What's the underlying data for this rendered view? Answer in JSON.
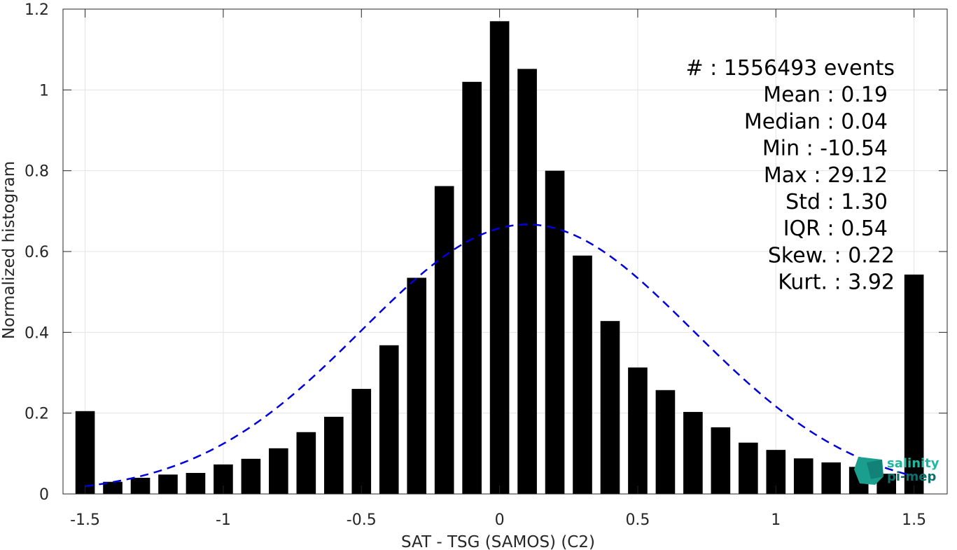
{
  "chart_data": {
    "type": "bar",
    "xlabel": "SAT - TSG (SAMOS) (C2)",
    "ylabel": "Normalized histogram",
    "xlim": [
      -1.58,
      1.62
    ],
    "ylim": [
      0,
      1.2
    ],
    "xticks": [
      -1.5,
      -1,
      -0.5,
      0,
      0.5,
      1,
      1.5
    ],
    "xtick_labels": [
      "-1.5",
      "-1",
      "-0.5",
      "0",
      "0.5",
      "1",
      "1.5"
    ],
    "yticks": [
      0,
      0.2,
      0.4,
      0.6,
      0.8,
      1,
      1.2
    ],
    "ytick_labels": [
      "0",
      "0.2",
      "0.4",
      "0.6",
      "0.8",
      "1",
      "1.2"
    ],
    "grid": true,
    "bar_color": "#000000",
    "bar_width": 0.07,
    "bars": {
      "x": [
        -1.5,
        -1.4,
        -1.3,
        -1.2,
        -1.1,
        -1.0,
        -0.9,
        -0.8,
        -0.7,
        -0.6,
        -0.5,
        -0.4,
        -0.3,
        -0.2,
        -0.1,
        0.0,
        0.1,
        0.2,
        0.3,
        0.4,
        0.5,
        0.6,
        0.7,
        0.8,
        0.9,
        1.0,
        1.1,
        1.2,
        1.3,
        1.4,
        1.5
      ],
      "y": [
        0.205,
        0.03,
        0.04,
        0.048,
        0.052,
        0.073,
        0.087,
        0.113,
        0.153,
        0.191,
        0.26,
        0.368,
        0.535,
        0.762,
        1.02,
        1.17,
        1.052,
        0.8,
        0.59,
        0.428,
        0.313,
        0.257,
        0.203,
        0.165,
        0.127,
        0.109,
        0.088,
        0.078,
        0.067,
        0.05,
        0.543
      ]
    },
    "fit_curve": {
      "style": "dashed",
      "color": "#0000dd",
      "mean": 0.1,
      "std": 0.6,
      "peak": 0.667,
      "x_range": [
        -1.5,
        1.5
      ]
    },
    "stats": [
      {
        "label": "#  : 1556493 events",
        "anchor": "end",
        "x_pad": 0
      },
      {
        "label": "Mean : 0.19",
        "anchor": "end",
        "x_pad": 10
      },
      {
        "label": "Median : 0.04",
        "anchor": "end",
        "x_pad": 10
      },
      {
        "label": "Min : -10.54",
        "anchor": "end",
        "x_pad": 10
      },
      {
        "label": "Max : 29.12",
        "anchor": "end",
        "x_pad": 10
      },
      {
        "label": "Std : 1.30",
        "anchor": "end",
        "x_pad": 10
      },
      {
        "label": "IQR : 0.54",
        "anchor": "end",
        "x_pad": 10
      },
      {
        "label": "Skew. : 0.22",
        "anchor": "end",
        "x_pad": 0
      },
      {
        "label": "Kurt. : 3.92",
        "anchor": "end",
        "x_pad": 0
      }
    ]
  },
  "logo": {
    "line1": "salinity",
    "line2": "pi-mep",
    "color1": "#1fb8a0",
    "color2": "#0f6f6a"
  }
}
